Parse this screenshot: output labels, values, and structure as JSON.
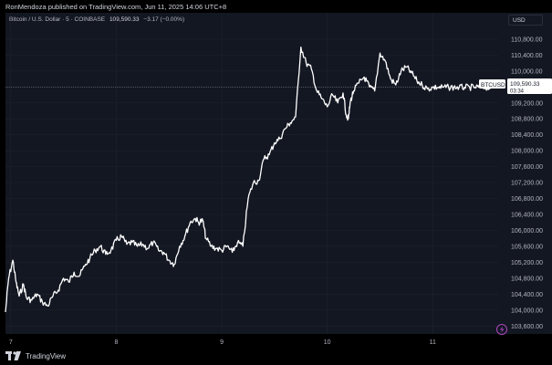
{
  "header": {
    "published": "RonMendoza published on TradingView.com, Jun 11, 2025 14:06 UTC+8",
    "instrument": "Bitcoin / U.S. Dollar · 5 · COINBASE",
    "price": "109,590.33",
    "change": "−3.17 (−0.00%)"
  },
  "currency_button": "USD",
  "price_label": {
    "symbol": "BTCUSD",
    "price": "109,590.33",
    "countdown": "03:34"
  },
  "footer": {
    "brand": "TradingView"
  },
  "colors": {
    "background": "#131722",
    "line": "#ffffff",
    "grid": "#1e222d",
    "accent": "#ab47bc"
  },
  "icons": [
    "tradingview-logo-icon",
    "lightning-icon"
  ],
  "chart_data": {
    "type": "line",
    "x_ticks": [
      {
        "day": 7,
        "label": "7"
      },
      {
        "day": 8,
        "label": "8"
      },
      {
        "day": 9,
        "label": "9"
      },
      {
        "day": 10,
        "label": "10"
      },
      {
        "day": 11,
        "label": "11"
      }
    ],
    "y_ticks": [
      "103,600.00",
      "104,000.00",
      "104,400.00",
      "104,800.00",
      "105,200.00",
      "105,600.00",
      "106,000.00",
      "106,400.00",
      "106,800.00",
      "107,200.00",
      "107,600.00",
      "108,000.00",
      "108,400.00",
      "108,800.00",
      "109,200.00",
      "110,000.00",
      "110,400.00",
      "110,800.00"
    ],
    "y_tick_values": [
      103600,
      104000,
      104400,
      104800,
      105200,
      105600,
      106000,
      106400,
      106800,
      107200,
      107600,
      108000,
      108400,
      108800,
      109200,
      110000,
      110400,
      110800
    ],
    "xlim": [
      6.95,
      11.62
    ],
    "ylim": [
      103400,
      111050
    ],
    "current_price": 109590.33,
    "series": [
      {
        "x": [
          6.95,
          6.98,
          7.02,
          7.05,
          7.08,
          7.12,
          7.15,
          7.2,
          7.25,
          7.3,
          7.35,
          7.4,
          7.45,
          7.5,
          7.55,
          7.6,
          7.65,
          7.7,
          7.75,
          7.8,
          7.85,
          7.9,
          7.95,
          8.0,
          8.05,
          8.1,
          8.15,
          8.2,
          8.25,
          8.3,
          8.35,
          8.4,
          8.45,
          8.5,
          8.55,
          8.6,
          8.65,
          8.7,
          8.75,
          8.78,
          8.82,
          8.85,
          8.9,
          8.95,
          9.0,
          9.05,
          9.1,
          9.15,
          9.2,
          9.25,
          9.3,
          9.35,
          9.4,
          9.45,
          9.5,
          9.55,
          9.6,
          9.65,
          9.7,
          9.75,
          9.8,
          9.85,
          9.9,
          9.95,
          10.0,
          10.05,
          10.1,
          10.15,
          10.18,
          10.2,
          10.22,
          10.25,
          10.3,
          10.35,
          10.4,
          10.45,
          10.5,
          10.55,
          10.6,
          10.65,
          10.7,
          10.75,
          10.8,
          10.85,
          10.9,
          10.95,
          11.0,
          11.05,
          11.1,
          11.15,
          11.2,
          11.25,
          11.3,
          11.35,
          11.4,
          11.45,
          11.5,
          11.55
        ],
        "y": [
          103950,
          104800,
          105250,
          104700,
          104350,
          104650,
          104300,
          104250,
          104400,
          104200,
          104100,
          104350,
          104500,
          104800,
          104700,
          104950,
          104850,
          105100,
          105300,
          105500,
          105600,
          105400,
          105500,
          105750,
          105850,
          105650,
          105700,
          105600,
          105650,
          105550,
          105700,
          105500,
          105450,
          105250,
          105150,
          105600,
          105850,
          106200,
          106300,
          106200,
          106250,
          105800,
          105600,
          105550,
          105500,
          105600,
          105450,
          105700,
          105600,
          106800,
          107200,
          107250,
          107800,
          107900,
          108200,
          108300,
          108550,
          108700,
          108850,
          110600,
          110200,
          110050,
          109500,
          109300,
          109100,
          109400,
          109200,
          109450,
          108900,
          108800,
          109250,
          109500,
          109700,
          109850,
          109600,
          109500,
          110450,
          110250,
          109800,
          109650,
          110000,
          110100,
          109950,
          109750,
          109650,
          109550,
          109590,
          109590,
          109590,
          109590,
          109590,
          109590,
          109590,
          109590,
          109590,
          109590,
          109590,
          109590
        ]
      }
    ]
  }
}
